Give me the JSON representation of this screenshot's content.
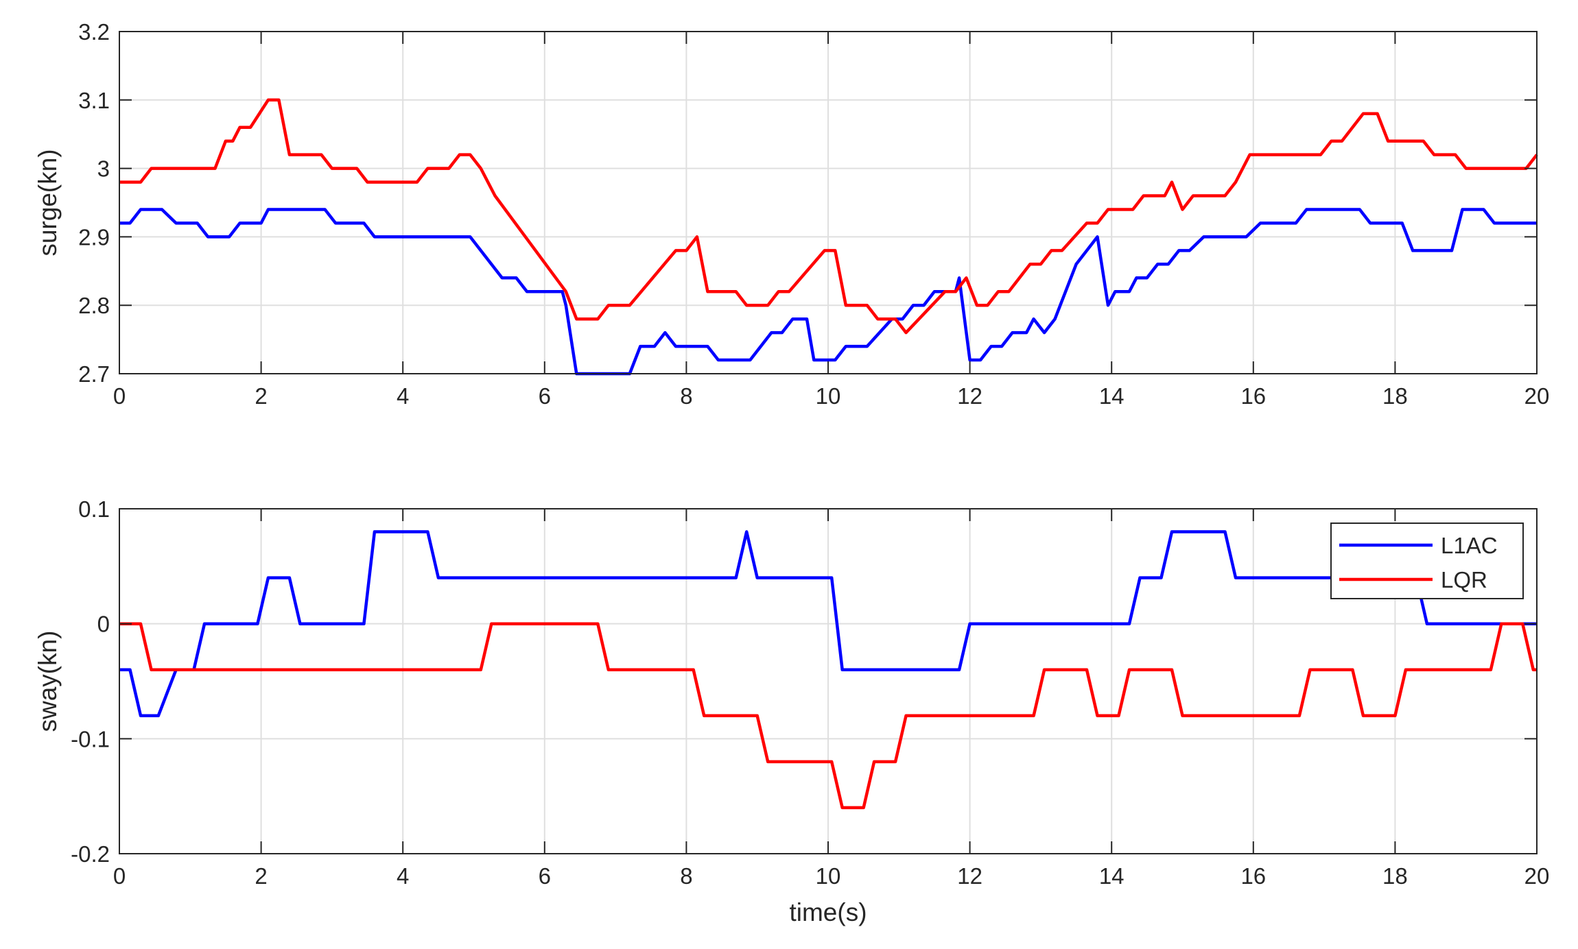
{
  "chart_data": [
    {
      "type": "line",
      "title": "",
      "xlabel": "",
      "ylabel": "surge(kn)",
      "xlim": [
        0,
        20
      ],
      "ylim": [
        2.7,
        3.2
      ],
      "xticks": [
        "0",
        "2",
        "4",
        "6",
        "8",
        "10",
        "12",
        "14",
        "16",
        "18",
        "20"
      ],
      "yticks": [
        "2.7",
        "2.8",
        "2.9",
        "3",
        "3.1",
        "3.2"
      ],
      "grid": true,
      "legend": null,
      "series": [
        {
          "name": "L1AC",
          "color": "#0000ff",
          "points": [
            [
              0,
              2.92
            ],
            [
              0.15,
              2.92
            ],
            [
              0.3,
              2.94
            ],
            [
              0.6,
              2.94
            ],
            [
              0.8,
              2.92
            ],
            [
              1.1,
              2.92
            ],
            [
              1.25,
              2.9
            ],
            [
              1.55,
              2.9
            ],
            [
              1.7,
              2.92
            ],
            [
              2.0,
              2.92
            ],
            [
              2.1,
              2.94
            ],
            [
              2.9,
              2.94
            ],
            [
              3.05,
              2.92
            ],
            [
              3.45,
              2.92
            ],
            [
              3.6,
              2.9
            ],
            [
              4.95,
              2.9
            ],
            [
              5.4,
              2.84
            ],
            [
              5.6,
              2.84
            ],
            [
              5.75,
              2.82
            ],
            [
              6.25,
              2.82
            ],
            [
              6.3,
              2.8
            ],
            [
              6.45,
              2.7
            ],
            [
              7.2,
              2.7
            ],
            [
              7.35,
              2.74
            ],
            [
              7.55,
              2.74
            ],
            [
              7.7,
              2.76
            ],
            [
              7.85,
              2.74
            ],
            [
              8.3,
              2.74
            ],
            [
              8.45,
              2.72
            ],
            [
              8.9,
              2.72
            ],
            [
              9.2,
              2.76
            ],
            [
              9.35,
              2.76
            ],
            [
              9.5,
              2.78
            ],
            [
              9.7,
              2.78
            ],
            [
              9.8,
              2.72
            ],
            [
              10.1,
              2.72
            ],
            [
              10.25,
              2.74
            ],
            [
              10.55,
              2.74
            ],
            [
              10.9,
              2.78
            ],
            [
              11.05,
              2.78
            ],
            [
              11.2,
              2.8
            ],
            [
              11.35,
              2.8
            ],
            [
              11.5,
              2.82
            ],
            [
              11.8,
              2.82
            ],
            [
              11.85,
              2.84
            ],
            [
              12.0,
              2.72
            ],
            [
              12.15,
              2.72
            ],
            [
              12.3,
              2.74
            ],
            [
              12.45,
              2.74
            ],
            [
              12.6,
              2.76
            ],
            [
              12.8,
              2.76
            ],
            [
              12.9,
              2.78
            ],
            [
              13.05,
              2.76
            ],
            [
              13.2,
              2.78
            ],
            [
              13.5,
              2.86
            ],
            [
              13.8,
              2.9
            ],
            [
              13.95,
              2.8
            ],
            [
              14.05,
              2.82
            ],
            [
              14.25,
              2.82
            ],
            [
              14.35,
              2.84
            ],
            [
              14.5,
              2.84
            ],
            [
              14.65,
              2.86
            ],
            [
              14.8,
              2.86
            ],
            [
              14.95,
              2.88
            ],
            [
              15.1,
              2.88
            ],
            [
              15.3,
              2.9
            ],
            [
              15.9,
              2.9
            ],
            [
              16.1,
              2.92
            ],
            [
              16.6,
              2.92
            ],
            [
              16.75,
              2.94
            ],
            [
              17.5,
              2.94
            ],
            [
              17.65,
              2.92
            ],
            [
              18.1,
              2.92
            ],
            [
              18.25,
              2.88
            ],
            [
              18.8,
              2.88
            ],
            [
              18.95,
              2.94
            ],
            [
              19.25,
              2.94
            ],
            [
              19.4,
              2.92
            ],
            [
              20,
              2.92
            ]
          ]
        },
        {
          "name": "LQR",
          "color": "#ff0000",
          "points": [
            [
              0,
              2.98
            ],
            [
              0.3,
              2.98
            ],
            [
              0.45,
              3.0
            ],
            [
              1.35,
              3.0
            ],
            [
              1.5,
              3.04
            ],
            [
              1.6,
              3.04
            ],
            [
              1.7,
              3.06
            ],
            [
              1.85,
              3.06
            ],
            [
              2.1,
              3.1
            ],
            [
              2.25,
              3.1
            ],
            [
              2.4,
              3.02
            ],
            [
              2.85,
              3.02
            ],
            [
              3.0,
              3.0
            ],
            [
              3.35,
              3.0
            ],
            [
              3.5,
              2.98
            ],
            [
              4.2,
              2.98
            ],
            [
              4.35,
              3.0
            ],
            [
              4.65,
              3.0
            ],
            [
              4.8,
              3.02
            ],
            [
              4.95,
              3.02
            ],
            [
              5.1,
              3.0
            ],
            [
              5.3,
              2.96
            ],
            [
              6.3,
              2.82
            ],
            [
              6.45,
              2.78
            ],
            [
              6.75,
              2.78
            ],
            [
              6.9,
              2.8
            ],
            [
              7.2,
              2.8
            ],
            [
              7.85,
              2.88
            ],
            [
              8.0,
              2.88
            ],
            [
              8.15,
              2.9
            ],
            [
              8.3,
              2.82
            ],
            [
              8.7,
              2.82
            ],
            [
              8.85,
              2.8
            ],
            [
              9.15,
              2.8
            ],
            [
              9.3,
              2.82
            ],
            [
              9.45,
              2.82
            ],
            [
              9.95,
              2.88
            ],
            [
              10.1,
              2.88
            ],
            [
              10.25,
              2.8
            ],
            [
              10.55,
              2.8
            ],
            [
              10.7,
              2.78
            ],
            [
              10.95,
              2.78
            ],
            [
              11.1,
              2.76
            ],
            [
              11.65,
              2.82
            ],
            [
              11.8,
              2.82
            ],
            [
              11.95,
              2.84
            ],
            [
              12.1,
              2.8
            ],
            [
              12.25,
              2.8
            ],
            [
              12.4,
              2.82
            ],
            [
              12.55,
              2.82
            ],
            [
              12.85,
              2.86
            ],
            [
              13.0,
              2.86
            ],
            [
              13.15,
              2.88
            ],
            [
              13.3,
              2.88
            ],
            [
              13.65,
              2.92
            ],
            [
              13.8,
              2.92
            ],
            [
              13.95,
              2.94
            ],
            [
              14.3,
              2.94
            ],
            [
              14.45,
              2.96
            ],
            [
              14.75,
              2.96
            ],
            [
              14.85,
              2.98
            ],
            [
              15.0,
              2.94
            ],
            [
              15.15,
              2.96
            ],
            [
              15.6,
              2.96
            ],
            [
              15.75,
              2.98
            ],
            [
              15.95,
              3.02
            ],
            [
              16.95,
              3.02
            ],
            [
              17.1,
              3.04
            ],
            [
              17.25,
              3.04
            ],
            [
              17.55,
              3.08
            ],
            [
              17.75,
              3.08
            ],
            [
              17.9,
              3.04
            ],
            [
              18.4,
              3.04
            ],
            [
              18.55,
              3.02
            ],
            [
              18.85,
              3.02
            ],
            [
              19.0,
              3.0
            ],
            [
              19.85,
              3.0
            ],
            [
              20,
              3.02
            ]
          ]
        }
      ]
    },
    {
      "type": "line",
      "title": "",
      "xlabel": "time(s)",
      "ylabel": "sway(kn)",
      "xlim": [
        0,
        20
      ],
      "ylim": [
        -0.2,
        0.1
      ],
      "xticks": [
        "0",
        "2",
        "4",
        "6",
        "8",
        "10",
        "12",
        "14",
        "16",
        "18",
        "20"
      ],
      "yticks": [
        "-0.2",
        "-0.1",
        "0",
        "0.1"
      ],
      "grid": true,
      "legend": "top-right",
      "series": [
        {
          "name": "L1AC",
          "color": "#0000ff",
          "points": [
            [
              0,
              -0.04
            ],
            [
              0.15,
              -0.04
            ],
            [
              0.3,
              -0.08
            ],
            [
              0.55,
              -0.08
            ],
            [
              0.8,
              -0.04
            ],
            [
              1.05,
              -0.04
            ],
            [
              1.2,
              0.0
            ],
            [
              1.95,
              0.0
            ],
            [
              2.1,
              0.04
            ],
            [
              2.4,
              0.04
            ],
            [
              2.55,
              0.0
            ],
            [
              3.45,
              0.0
            ],
            [
              3.6,
              0.08
            ],
            [
              4.35,
              0.08
            ],
            [
              4.5,
              0.04
            ],
            [
              8.7,
              0.04
            ],
            [
              8.85,
              0.08
            ],
            [
              9.0,
              0.04
            ],
            [
              10.05,
              0.04
            ],
            [
              10.2,
              -0.04
            ],
            [
              11.85,
              -0.04
            ],
            [
              12.0,
              0.0
            ],
            [
              14.25,
              0.0
            ],
            [
              14.4,
              0.04
            ],
            [
              14.7,
              0.04
            ],
            [
              14.85,
              0.08
            ],
            [
              15.6,
              0.08
            ],
            [
              15.75,
              0.04
            ],
            [
              18.3,
              0.04
            ],
            [
              18.45,
              0.0
            ],
            [
              20,
              0.0
            ]
          ]
        },
        {
          "name": "LQR",
          "color": "#ff0000",
          "points": [
            [
              0,
              0.0
            ],
            [
              0.3,
              0.0
            ],
            [
              0.45,
              -0.04
            ],
            [
              5.1,
              -0.04
            ],
            [
              5.25,
              0.0
            ],
            [
              6.75,
              0.0
            ],
            [
              6.9,
              -0.04
            ],
            [
              8.1,
              -0.04
            ],
            [
              8.25,
              -0.08
            ],
            [
              9.0,
              -0.08
            ],
            [
              9.15,
              -0.12
            ],
            [
              10.05,
              -0.12
            ],
            [
              10.2,
              -0.16
            ],
            [
              10.5,
              -0.16
            ],
            [
              10.65,
              -0.12
            ],
            [
              10.95,
              -0.12
            ],
            [
              11.1,
              -0.08
            ],
            [
              12.9,
              -0.08
            ],
            [
              13.05,
              -0.04
            ],
            [
              13.65,
              -0.04
            ],
            [
              13.8,
              -0.08
            ],
            [
              14.1,
              -0.08
            ],
            [
              14.25,
              -0.04
            ],
            [
              14.85,
              -0.04
            ],
            [
              15.0,
              -0.08
            ],
            [
              16.65,
              -0.08
            ],
            [
              16.8,
              -0.04
            ],
            [
              17.4,
              -0.04
            ],
            [
              17.55,
              -0.08
            ],
            [
              18.0,
              -0.08
            ],
            [
              18.15,
              -0.04
            ],
            [
              19.35,
              -0.04
            ],
            [
              19.5,
              0.0
            ],
            [
              19.8,
              0.0
            ],
            [
              19.95,
              -0.04
            ],
            [
              20,
              -0.04
            ]
          ]
        }
      ]
    }
  ]
}
